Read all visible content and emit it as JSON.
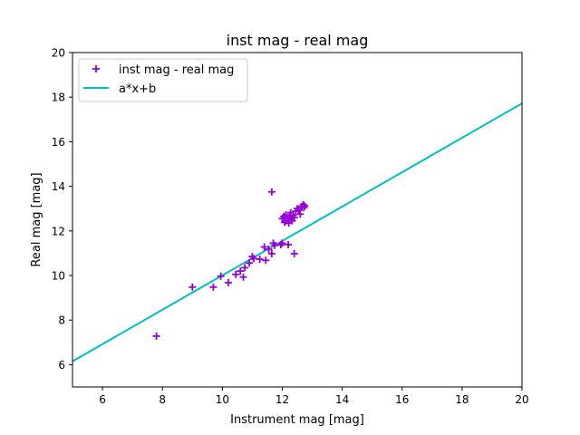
{
  "chart_data": {
    "type": "scatter",
    "title": "inst mag - real mag",
    "xlabel": "Instrument mag [mag]",
    "ylabel": "Real mag [mag]",
    "xlim": [
      5,
      20
    ],
    "ylim": [
      5,
      20
    ],
    "xticks": [
      6,
      8,
      10,
      12,
      14,
      16,
      18,
      20
    ],
    "yticks": [
      6,
      8,
      10,
      12,
      14,
      16,
      18,
      20
    ],
    "grid": false,
    "legend_position": "top-left",
    "series": [
      {
        "name": "inst mag - real mag",
        "kind": "scatter",
        "marker": "plus",
        "color": "#9400d3",
        "points": [
          [
            7.8,
            7.28
          ],
          [
            9.0,
            9.48
          ],
          [
            9.7,
            9.48
          ],
          [
            9.95,
            9.97
          ],
          [
            10.2,
            9.68
          ],
          [
            10.45,
            10.05
          ],
          [
            10.6,
            10.2
          ],
          [
            10.7,
            9.93
          ],
          [
            10.75,
            10.35
          ],
          [
            10.9,
            10.56
          ],
          [
            11.0,
            10.85
          ],
          [
            11.05,
            10.76
          ],
          [
            11.25,
            10.73
          ],
          [
            11.4,
            11.28
          ],
          [
            11.45,
            10.68
          ],
          [
            11.55,
            11.18
          ],
          [
            11.65,
            10.98
          ],
          [
            11.7,
            11.45
          ],
          [
            11.75,
            11.35
          ],
          [
            11.65,
            13.75
          ],
          [
            11.95,
            11.38
          ],
          [
            12.0,
            11.45
          ],
          [
            12.2,
            11.38
          ],
          [
            12.4,
            10.98
          ],
          [
            12.0,
            12.55
          ],
          [
            12.05,
            12.65
          ],
          [
            12.08,
            12.38
          ],
          [
            12.12,
            12.72
          ],
          [
            12.15,
            12.45
          ],
          [
            12.18,
            12.58
          ],
          [
            12.22,
            12.35
          ],
          [
            12.25,
            12.62
          ],
          [
            12.28,
            12.82
          ],
          [
            12.3,
            12.52
          ],
          [
            12.33,
            12.45
          ],
          [
            12.36,
            12.7
          ],
          [
            12.4,
            12.6
          ],
          [
            12.45,
            12.88
          ],
          [
            12.5,
            13.0
          ],
          [
            12.55,
            12.92
          ],
          [
            12.6,
            12.75
          ],
          [
            12.65,
            13.1
          ],
          [
            12.7,
            13.18
          ],
          [
            12.72,
            13.05
          ],
          [
            12.75,
            13.12
          ]
        ]
      },
      {
        "name": "a*x+b",
        "kind": "line",
        "color": "#00bfbf",
        "points": [
          [
            5,
            6.15
          ],
          [
            20,
            17.72
          ]
        ]
      }
    ]
  }
}
